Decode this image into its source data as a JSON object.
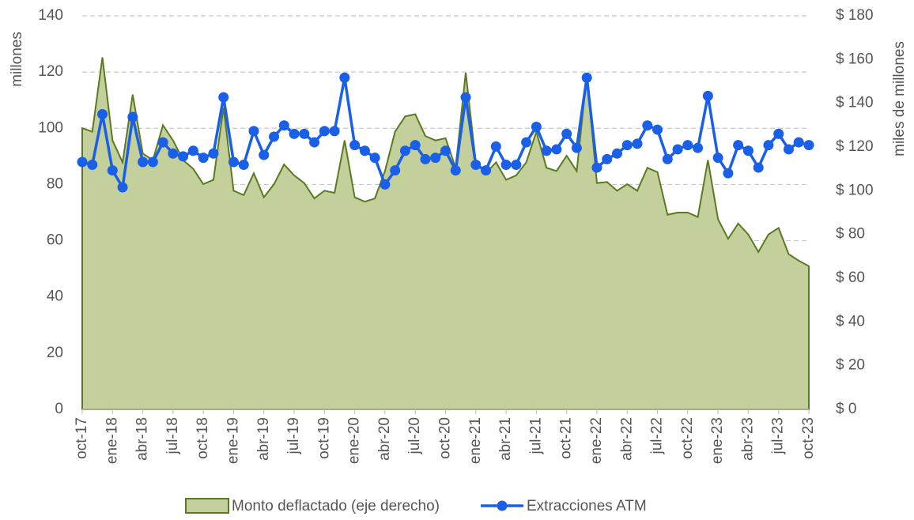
{
  "chart_data": {
    "type": "line",
    "categories": [
      "oct-17",
      null,
      null,
      "ene-18",
      null,
      null,
      "abr-18",
      null,
      null,
      "jul-18",
      null,
      null,
      "oct-18",
      null,
      null,
      "ene-19",
      null,
      null,
      "abr-19",
      null,
      null,
      "jul-19",
      null,
      null,
      "oct-19",
      null,
      null,
      "ene-20",
      null,
      null,
      "abr-20",
      null,
      null,
      "jul-20",
      null,
      null,
      "oct-20",
      null,
      null,
      "ene-21",
      null,
      null,
      "abr-21",
      null,
      null,
      "jul-21",
      null,
      null,
      "oct-21",
      null,
      null,
      "ene-22",
      null,
      null,
      "abr-22",
      null,
      null,
      "jul-22",
      null,
      null,
      "oct-22",
      null,
      null,
      "ene-23",
      null,
      null,
      "abr-23",
      null,
      null,
      "jul-23",
      null,
      null,
      "oct-23"
    ],
    "series": [
      {
        "name": "Monto deflactado (eje derecho)",
        "type": "area",
        "axis": "y2",
        "color": "#c4d09b",
        "line_color": "#5b7a1f",
        "values": [
          128.6,
          127,
          161,
          123,
          113,
          144,
          117,
          114,
          130,
          123,
          114,
          110,
          103,
          105,
          138,
          100,
          98,
          108,
          97,
          103,
          112,
          107,
          103.5,
          96.5,
          100,
          99,
          123,
          97,
          95,
          96.5,
          109,
          127,
          134,
          135,
          125,
          123,
          124,
          110.5,
          154,
          113,
          108,
          113,
          105,
          107,
          113,
          127,
          110.5,
          109,
          116,
          109,
          153,
          103.5,
          104,
          100,
          103,
          100,
          110.5,
          108.5,
          89,
          90,
          90,
          88,
          114,
          87,
          78,
          85,
          80,
          72,
          80,
          83,
          71,
          68,
          65.5
        ]
      },
      {
        "name": "Extracciones ATM",
        "type": "line",
        "color": "#1a5fe8",
        "values": [
          88,
          87,
          105,
          85,
          79,
          104,
          88,
          88,
          95,
          91,
          90,
          92,
          89.5,
          91,
          111,
          88,
          87,
          99,
          90.5,
          97,
          101,
          98,
          98,
          95,
          99,
          99,
          118,
          94,
          92,
          89.5,
          80,
          85,
          92,
          94,
          89,
          89.5,
          92,
          85,
          111,
          87,
          85,
          93.5,
          87,
          87,
          95,
          100.5,
          92,
          92.5,
          98,
          93,
          118,
          86,
          89,
          91,
          94,
          94.5,
          101,
          99.5,
          89,
          92.5,
          94,
          93,
          111.5,
          89.5,
          84,
          94,
          92,
          86,
          94,
          98,
          92.5,
          95,
          94
        ]
      }
    ],
    "ylabel": "millones",
    "y2label": "miles de millones",
    "ylim": [
      0,
      140
    ],
    "yticks": [
      0,
      20,
      40,
      60,
      80,
      100,
      120,
      140
    ],
    "y2lim": [
      0,
      180
    ],
    "y2ticks": [
      {
        "value": 0,
        "label": "$ 0"
      },
      {
        "value": 20,
        "label": "$ 20"
      },
      {
        "value": 40,
        "label": "$ 40"
      },
      {
        "value": 60,
        "label": "$ 60"
      },
      {
        "value": 80,
        "label": "$ 80"
      },
      {
        "value": 100,
        "label": "$ 100"
      },
      {
        "value": 120,
        "label": "$ 120"
      },
      {
        "value": 140,
        "label": "$ 140"
      },
      {
        "value": 160,
        "label": "$ 160"
      },
      {
        "value": 180,
        "label": "$ 180"
      }
    ],
    "grid": true,
    "legend": "bottom"
  }
}
